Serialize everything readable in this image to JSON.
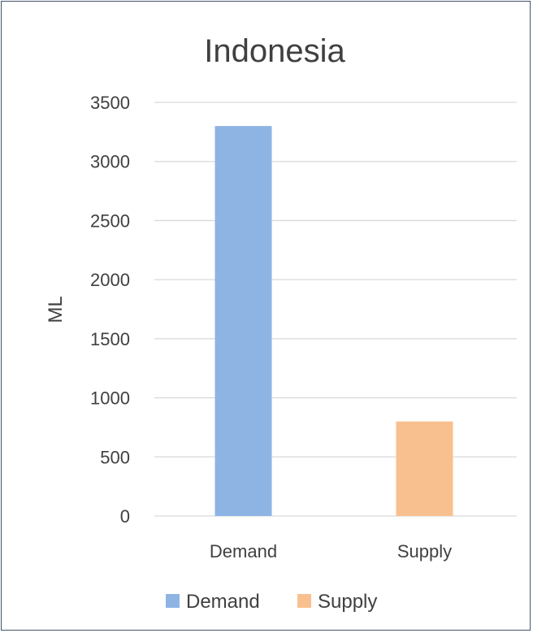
{
  "chart_data": {
    "type": "bar",
    "title": "Indonesia",
    "xlabel": "",
    "ylabel": "ML",
    "categories": [
      "Demand",
      "Supply"
    ],
    "values": [
      3300,
      800
    ],
    "colors": [
      "#8eb4e3",
      "#f9c08f"
    ],
    "ylim": [
      0,
      3500
    ],
    "yticks": [
      "0",
      "500",
      "1000",
      "1500",
      "2000",
      "2500",
      "3000",
      "3500"
    ],
    "grid": true,
    "legend": {
      "position": "bottom",
      "entries": [
        "Demand",
        "Supply"
      ]
    }
  }
}
